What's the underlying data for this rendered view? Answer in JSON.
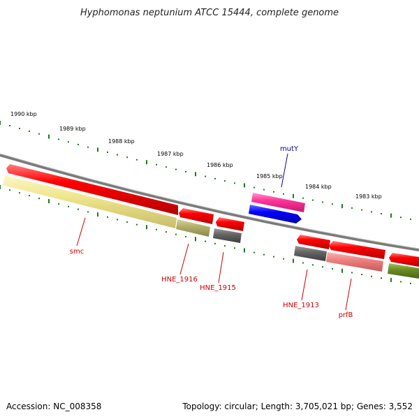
{
  "title": "Hyphomonas neptunium ATCC 15444, complete genome",
  "accession": "Accession: NC_008358",
  "topology": "Topology: circular; Length: 3,705,021 bp; Genes: 3,552",
  "scale_labels": [
    "1990 kbp",
    "1989 kbp",
    "1988 kbp",
    "1987 kbp",
    "1986 kbp",
    "1985 kbp",
    "1984 kbp",
    "1983 kbp"
  ],
  "gene_labels": [
    {
      "name": "smc",
      "color": "#cc0000"
    },
    {
      "name": "HNE_1916",
      "color": "#cc0000"
    },
    {
      "name": "HNE_1915",
      "color": "#cc0000"
    },
    {
      "name": "mutY",
      "color": "#000099"
    },
    {
      "name": "HNE_1913",
      "color": "#cc0000"
    },
    {
      "name": "prfB",
      "color": "#cc0000"
    }
  ],
  "features": [
    {
      "name": "smc",
      "track": "outer-forward",
      "color": "#ff0000"
    },
    {
      "name": "HNE_1916",
      "track": "outer-forward",
      "color": "#ff0000"
    },
    {
      "name": "HNE_1915",
      "track": "outer-forward",
      "color": "#ff0000"
    },
    {
      "name": "mutY",
      "track": "inner-reverse",
      "color": "#ff3399"
    },
    {
      "name": "mutY",
      "track": "inner-reverse-cds",
      "color": "#0000ff"
    },
    {
      "name": "HNE_1913",
      "track": "outer-forward",
      "color": "#ff0000"
    },
    {
      "name": "prfB",
      "track": "outer-forward",
      "color": "#ff0000"
    }
  ],
  "colors": {
    "backbone": "#808080",
    "tick": "#1a7a1a",
    "gene_red": "#ff0000",
    "cog_yellow": "#f0e68c",
    "cog_olive": "#b5b06a",
    "cog_gray": "#666666",
    "cog_pink": "#f08080",
    "cog_green": "#6b8e23",
    "mutY_pink": "#ff3399",
    "mutY_blue": "#0000ff"
  }
}
